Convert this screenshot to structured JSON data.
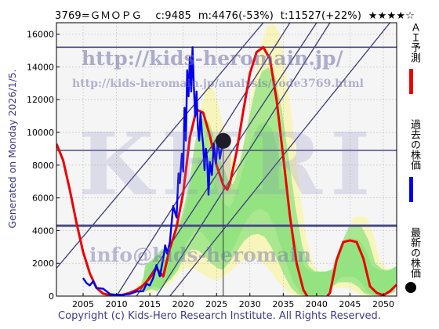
{
  "header": {
    "code": "3769=ＧＭＯＰＧ",
    "current": "c:9485",
    "min": "m:4476(-53%)",
    "target": "t:11527(+22%)",
    "rating": "★★★★☆"
  },
  "side_label": "Generated on Monday 2026/1/5.",
  "footer": "Copyright (c) Kids-Hero Research Institute. All Rights Reserved.",
  "watermarks": {
    "url1": "http://kids-heromain.jp/",
    "url2": "http://kids-heromain.jp/analysis/code3769.html",
    "url3": "info@kids-heromain",
    "big": "KHRI"
  },
  "legend": [
    {
      "label": "ＡＩ予測",
      "color": "#ee0000",
      "marker": "line"
    },
    {
      "label": "過去の株価",
      "color": "#0000ee",
      "marker": "line"
    },
    {
      "label": "最新の株価",
      "color": "#000000",
      "marker": "dot"
    }
  ],
  "chart_data": {
    "type": "line",
    "x_ticks": [
      2005,
      2010,
      2015,
      2020,
      2025,
      2030,
      2035,
      2040,
      2045,
      2050
    ],
    "y_ticks": [
      0,
      2000,
      4000,
      6000,
      8000,
      10000,
      12000,
      14000,
      16000
    ],
    "xlim": [
      2001,
      2052
    ],
    "ylim": [
      0,
      16700
    ],
    "grid": true,
    "horizontal_levels": [
      15200,
      8900,
      4300
    ],
    "current_point": {
      "x": 2026.0,
      "y": 9485
    },
    "current_vline_x": 2026.0,
    "trend_lines": [
      {
        "from": [
          2001,
          1700
        ],
        "to": [
          2032,
          16700
        ]
      },
      {
        "from": [
          2010,
          0
        ],
        "to": [
          2036,
          16700
        ]
      },
      {
        "from": [
          2013,
          0
        ],
        "to": [
          2040,
          16700
        ]
      },
      {
        "from": [
          2016,
          0
        ],
        "to": [
          2042,
          16700
        ]
      },
      {
        "from": [
          2018,
          0
        ],
        "to": [
          2051,
          16700
        ]
      }
    ],
    "series": [
      {
        "name": "ＡＩ予測",
        "color": "#ee0000",
        "points": [
          [
            2001,
            9300
          ],
          [
            2002,
            8300
          ],
          [
            2003,
            6500
          ],
          [
            2004,
            4500
          ],
          [
            2005,
            2700
          ],
          [
            2006,
            1400
          ],
          [
            2007,
            500
          ],
          [
            2008,
            150
          ],
          [
            2009,
            60
          ],
          [
            2010,
            40
          ],
          [
            2011,
            80
          ],
          [
            2012,
            200
          ],
          [
            2013,
            380
          ],
          [
            2014,
            650
          ],
          [
            2015,
            1100
          ],
          [
            2016,
            1700
          ],
          [
            2017,
            1200
          ],
          [
            2018,
            2900
          ],
          [
            2019,
            4200
          ],
          [
            2020,
            6300
          ],
          [
            2021,
            9700
          ],
          [
            2022,
            11400
          ],
          [
            2023,
            11200
          ],
          [
            2024,
            9800
          ],
          [
            2025,
            8000
          ],
          [
            2026,
            6800
          ],
          [
            2026.6,
            6500
          ],
          [
            2027,
            6900
          ],
          [
            2028,
            8800
          ],
          [
            2029,
            11300
          ],
          [
            2030,
            13600
          ],
          [
            2031,
            14900
          ],
          [
            2032,
            15200
          ],
          [
            2033,
            14500
          ],
          [
            2034,
            12000
          ],
          [
            2035,
            8500
          ],
          [
            2036,
            4900
          ],
          [
            2037,
            2000
          ],
          [
            2038,
            400
          ],
          [
            2039,
            -300
          ],
          [
            2040,
            -400
          ],
          [
            2041,
            -300
          ],
          [
            2042,
            200
          ],
          [
            2043,
            2200
          ],
          [
            2044,
            3300
          ],
          [
            2045,
            3400
          ],
          [
            2046,
            3300
          ],
          [
            2047,
            2300
          ],
          [
            2048,
            600
          ],
          [
            2049,
            200
          ],
          [
            2050,
            50
          ],
          [
            2051,
            300
          ],
          [
            2052,
            700
          ]
        ]
      },
      {
        "name": "過去の株価",
        "color": "#0000ee",
        "points": [
          [
            2001,
            null
          ],
          [
            2005,
            1100
          ],
          [
            2005.5,
            800
          ],
          [
            2006,
            650
          ],
          [
            2006.5,
            900
          ],
          [
            2007,
            500
          ],
          [
            2008,
            450
          ],
          [
            2008.8,
            200
          ],
          [
            2009,
            120
          ],
          [
            2010,
            80
          ],
          [
            2011,
            90
          ],
          [
            2012,
            130
          ],
          [
            2013,
            280
          ],
          [
            2014,
            300
          ],
          [
            2014.5,
            750
          ],
          [
            2015,
            650
          ],
          [
            2015.5,
            1100
          ],
          [
            2016,
            1900
          ],
          [
            2016.5,
            1200
          ],
          [
            2017,
            2300
          ],
          [
            2017.3,
            3100
          ],
          [
            2017.6,
            2600
          ],
          [
            2018,
            3300
          ],
          [
            2018.5,
            5500
          ],
          [
            2019,
            4800
          ],
          [
            2019.3,
            7500
          ],
          [
            2019.5,
            6900
          ],
          [
            2019.8,
            8700
          ],
          [
            2020,
            7600
          ],
          [
            2020.2,
            11500
          ],
          [
            2020.4,
            9500
          ],
          [
            2020.6,
            13800
          ],
          [
            2020.8,
            12200
          ],
          [
            2021,
            14600
          ],
          [
            2021.2,
            12500
          ],
          [
            2021.4,
            15200
          ],
          [
            2021.6,
            12800
          ],
          [
            2021.8,
            11000
          ],
          [
            2022,
            12500
          ],
          [
            2022.2,
            10300
          ],
          [
            2022.4,
            9500
          ],
          [
            2022.6,
            11200
          ],
          [
            2022.8,
            10000
          ],
          [
            2023,
            9200
          ],
          [
            2023.2,
            7700
          ],
          [
            2023.4,
            9000
          ],
          [
            2023.6,
            8300
          ],
          [
            2023.8,
            6200
          ],
          [
            2024,
            8200
          ],
          [
            2024.3,
            7400
          ],
          [
            2024.6,
            9300
          ],
          [
            2024.9,
            8100
          ],
          [
            2025.2,
            9500
          ],
          [
            2025.5,
            8400
          ],
          [
            2025.8,
            9100
          ],
          [
            2026,
            9485
          ]
        ]
      }
    ]
  },
  "colors": {
    "bg_gray": "#f2f2f2",
    "band_green": "#8fe37f",
    "band_yellow": "#f8f5b6",
    "grid": "#bbbbbb",
    "trend_line": "#3b3b7a",
    "h_level": "#4a4a85"
  }
}
